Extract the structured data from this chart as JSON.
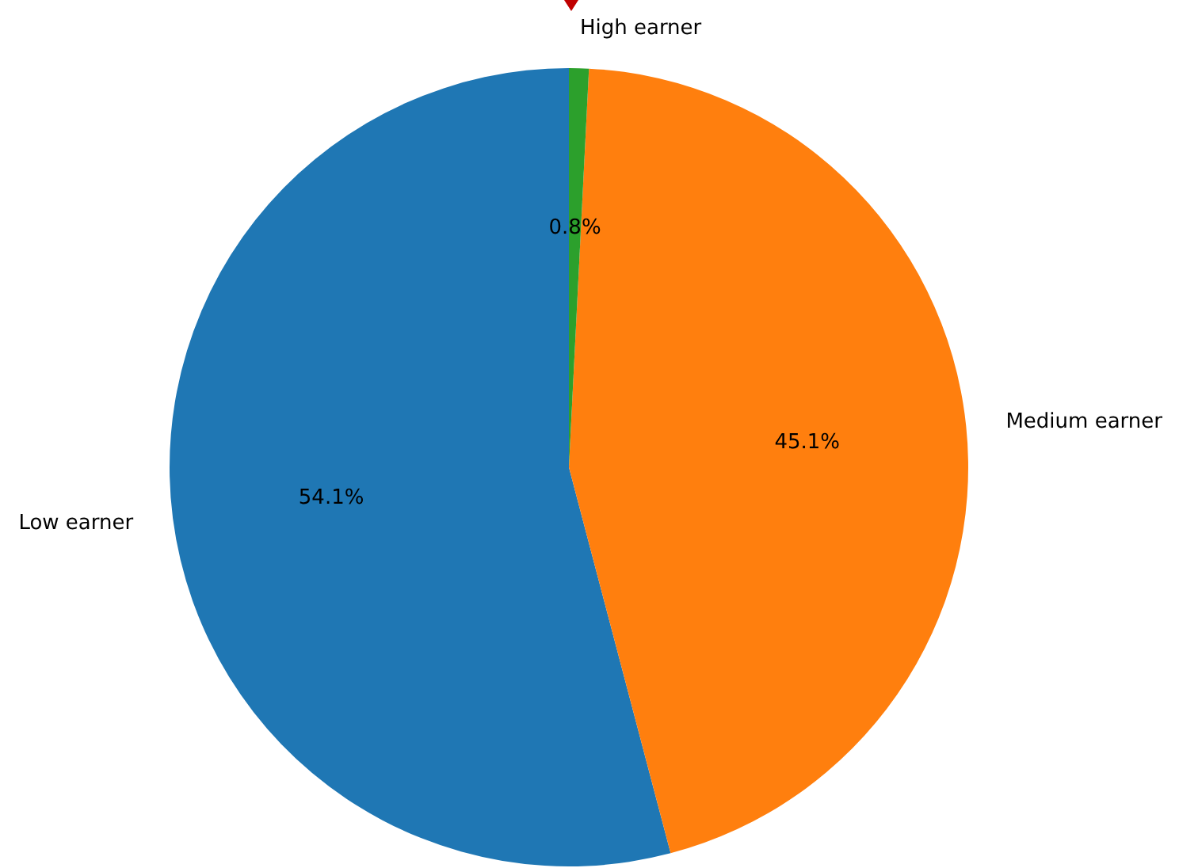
{
  "chart_data": {
    "type": "pie",
    "categories": [
      "Low earner",
      "Medium earner",
      "High earner"
    ],
    "values": [
      54.1,
      45.1,
      0.8
    ],
    "colors": [
      "#1f77b4",
      "#ff7f0e",
      "#2ca02c"
    ],
    "value_labels": [
      "54.1%",
      "45.1%",
      "0.8%"
    ]
  }
}
